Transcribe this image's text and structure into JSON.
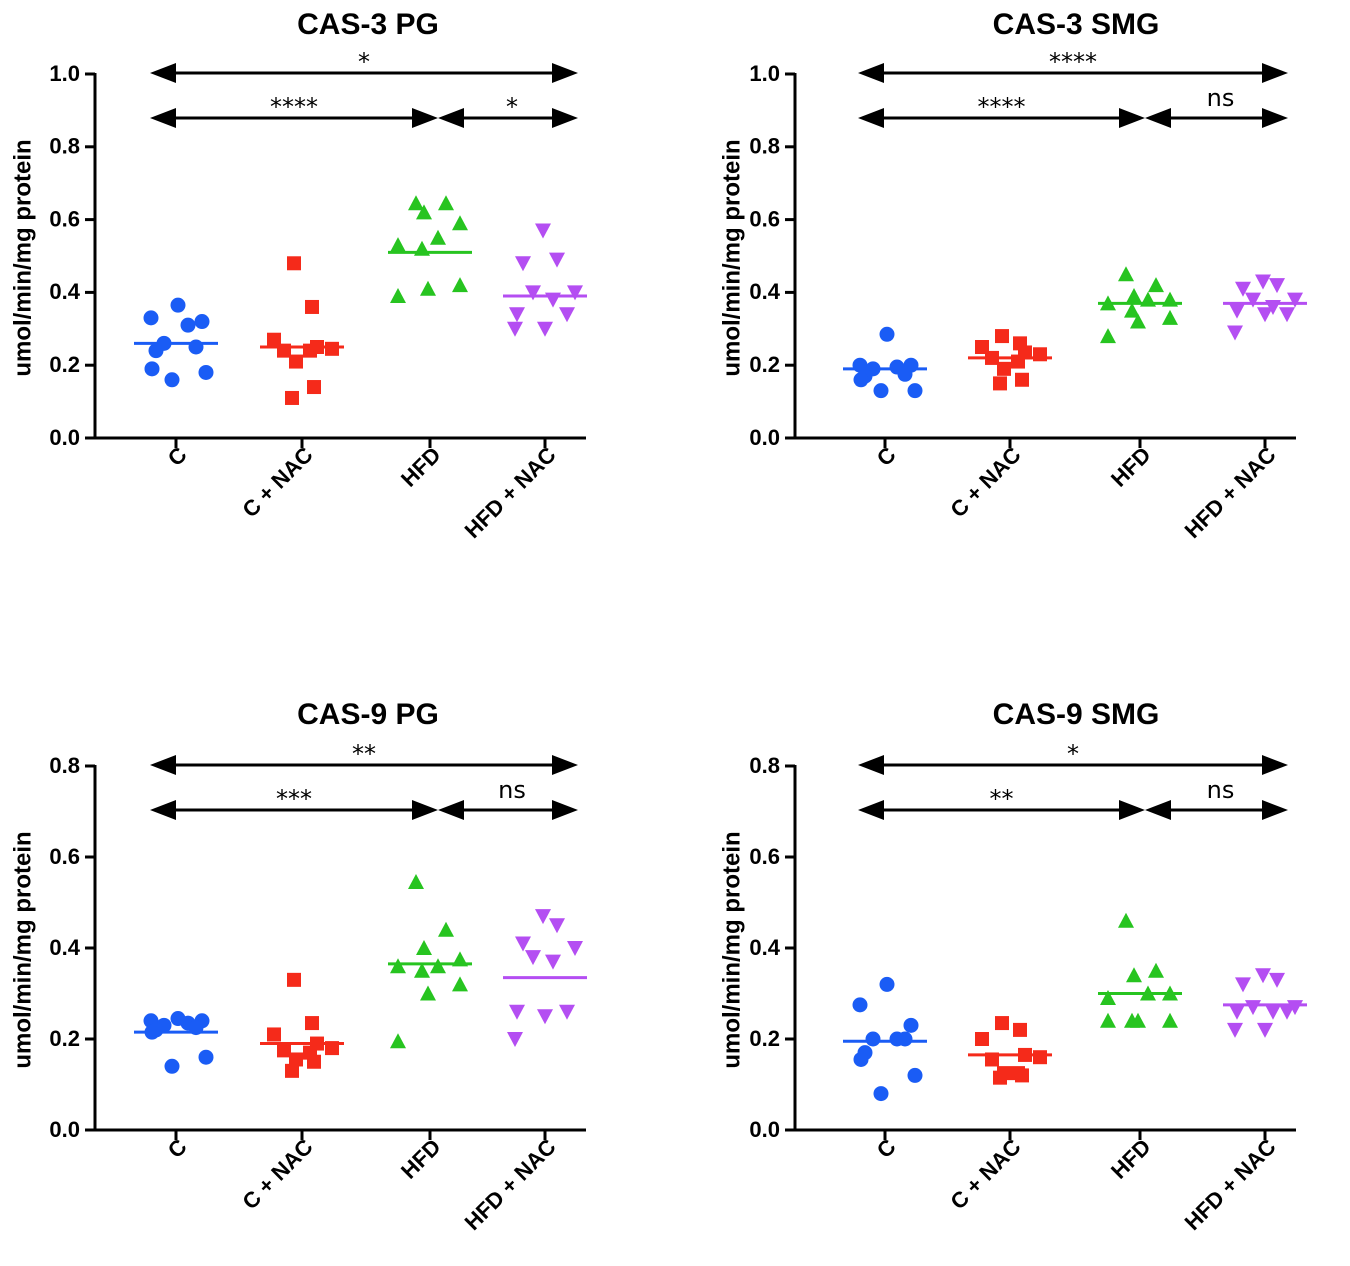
{
  "chart_data": [
    {
      "type": "scatter",
      "title": "CAS-3 PG",
      "ylabel": "umol/min/mg protein",
      "ylim": [
        0,
        1.0
      ],
      "yticks": [
        "0.0",
        "0.2",
        "0.4",
        "0.6",
        "0.8",
        "1.0"
      ],
      "categories": [
        "C",
        "C + NAC",
        "HFD",
        "HFD + NAC"
      ],
      "series": [
        {
          "name": "C",
          "shape": "circle",
          "color": "#1a5cf5",
          "mean": 0.26,
          "values": [
            0.365,
            0.33,
            0.32,
            0.31,
            0.26,
            0.25,
            0.24,
            0.19,
            0.18,
            0.16
          ]
        },
        {
          "name": "C + NAC",
          "shape": "square",
          "color": "#f52a1a",
          "mean": 0.25,
          "values": [
            0.48,
            0.36,
            0.27,
            0.25,
            0.245,
            0.24,
            0.24,
            0.21,
            0.14,
            0.11
          ]
        },
        {
          "name": "HFD",
          "shape": "triangle-up",
          "color": "#27c420",
          "mean": 0.51,
          "values": [
            0.645,
            0.645,
            0.62,
            0.59,
            0.55,
            0.53,
            0.52,
            0.42,
            0.41,
            0.39
          ]
        },
        {
          "name": "HFD + NAC",
          "shape": "triangle-down",
          "color": "#b44ef2",
          "mean": 0.39,
          "values": [
            0.57,
            0.49,
            0.48,
            0.4,
            0.4,
            0.38,
            0.34,
            0.34,
            0.3,
            0.3
          ]
        }
      ],
      "comparisons": [
        {
          "from": "C",
          "to": "HFD + NAC",
          "label": "*"
        },
        {
          "from": "C",
          "to": "HFD",
          "label": "****"
        },
        {
          "from": "HFD",
          "to": "HFD + NAC",
          "label": "*"
        }
      ]
    },
    {
      "type": "scatter",
      "title": "CAS-3 SMG",
      "ylabel": "umol/min/mg protein",
      "ylim": [
        0,
        1.0
      ],
      "yticks": [
        "0.0",
        "0.2",
        "0.4",
        "0.6",
        "0.8",
        "1.0"
      ],
      "categories": [
        "C",
        "C + NAC",
        "HFD",
        "HFD + NAC"
      ],
      "series": [
        {
          "name": "C",
          "shape": "circle",
          "color": "#1a5cf5",
          "mean": 0.19,
          "values": [
            0.285,
            0.2,
            0.2,
            0.195,
            0.19,
            0.175,
            0.17,
            0.16,
            0.13,
            0.13
          ]
        },
        {
          "name": "C + NAC",
          "shape": "square",
          "color": "#f52a1a",
          "mean": 0.22,
          "values": [
            0.28,
            0.26,
            0.25,
            0.235,
            0.23,
            0.22,
            0.21,
            0.19,
            0.16,
            0.15
          ]
        },
        {
          "name": "HFD",
          "shape": "triangle-up",
          "color": "#27c420",
          "mean": 0.37,
          "values": [
            0.45,
            0.42,
            0.39,
            0.38,
            0.38,
            0.37,
            0.35,
            0.33,
            0.32,
            0.28
          ]
        },
        {
          "name": "HFD + NAC",
          "shape": "triangle-down",
          "color": "#b44ef2",
          "mean": 0.37,
          "values": [
            0.43,
            0.42,
            0.41,
            0.38,
            0.38,
            0.36,
            0.35,
            0.34,
            0.34,
            0.29
          ]
        }
      ],
      "comparisons": [
        {
          "from": "C",
          "to": "HFD + NAC",
          "label": "****"
        },
        {
          "from": "C",
          "to": "HFD",
          "label": "****"
        },
        {
          "from": "HFD",
          "to": "HFD + NAC",
          "label": "ns"
        }
      ]
    },
    {
      "type": "scatter",
      "title": "CAS-9 PG",
      "ylabel": "umol/min/mg protein",
      "ylim": [
        0,
        0.8
      ],
      "yticks": [
        "0.0",
        "0.2",
        "0.4",
        "0.6",
        "0.8"
      ],
      "categories": [
        "C",
        "C + NAC",
        "HFD",
        "HFD + NAC"
      ],
      "series": [
        {
          "name": "C",
          "shape": "circle",
          "color": "#1a5cf5",
          "mean": 0.215,
          "values": [
            0.245,
            0.24,
            0.24,
            0.235,
            0.23,
            0.225,
            0.22,
            0.215,
            0.16,
            0.14
          ]
        },
        {
          "name": "C + NAC",
          "shape": "square",
          "color": "#f52a1a",
          "mean": 0.19,
          "values": [
            0.33,
            0.235,
            0.21,
            0.19,
            0.18,
            0.175,
            0.17,
            0.155,
            0.15,
            0.13
          ]
        },
        {
          "name": "HFD",
          "shape": "triangle-up",
          "color": "#27c420",
          "mean": 0.365,
          "values": [
            0.545,
            0.44,
            0.4,
            0.375,
            0.36,
            0.36,
            0.35,
            0.32,
            0.3,
            0.195
          ]
        },
        {
          "name": "HFD + NAC",
          "shape": "triangle-down",
          "color": "#b44ef2",
          "mean": 0.335,
          "values": [
            0.47,
            0.45,
            0.41,
            0.4,
            0.38,
            0.37,
            0.26,
            0.26,
            0.25,
            0.2
          ]
        }
      ],
      "comparisons": [
        {
          "from": "C",
          "to": "HFD + NAC",
          "label": "**"
        },
        {
          "from": "C",
          "to": "HFD",
          "label": "***"
        },
        {
          "from": "HFD",
          "to": "HFD + NAC",
          "label": "ns"
        }
      ]
    },
    {
      "type": "scatter",
      "title": "CAS-9 SMG",
      "ylabel": "umol/min/mg protein",
      "ylim": [
        0,
        0.8
      ],
      "yticks": [
        "0.0",
        "0.2",
        "0.4",
        "0.6",
        "0.8"
      ],
      "categories": [
        "C",
        "C + NAC",
        "HFD",
        "HFD + NAC"
      ],
      "series": [
        {
          "name": "C",
          "shape": "circle",
          "color": "#1a5cf5",
          "mean": 0.195,
          "values": [
            0.32,
            0.275,
            0.23,
            0.2,
            0.2,
            0.2,
            0.17,
            0.155,
            0.12,
            0.08
          ]
        },
        {
          "name": "C + NAC",
          "shape": "square",
          "color": "#f52a1a",
          "mean": 0.165,
          "values": [
            0.235,
            0.22,
            0.2,
            0.165,
            0.16,
            0.155,
            0.125,
            0.125,
            0.12,
            0.115
          ]
        },
        {
          "name": "HFD",
          "shape": "triangle-up",
          "color": "#27c420",
          "mean": 0.3,
          "values": [
            0.46,
            0.35,
            0.34,
            0.3,
            0.3,
            0.29,
            0.24,
            0.24,
            0.24,
            0.24
          ]
        },
        {
          "name": "HFD + NAC",
          "shape": "triangle-down",
          "color": "#b44ef2",
          "mean": 0.275,
          "values": [
            0.34,
            0.33,
            0.32,
            0.27,
            0.27,
            0.26,
            0.26,
            0.26,
            0.22,
            0.22
          ]
        }
      ],
      "comparisons": [
        {
          "from": "C",
          "to": "HFD + NAC",
          "label": "*"
        },
        {
          "from": "C",
          "to": "HFD",
          "label": "**"
        },
        {
          "from": "HFD",
          "to": "HFD + NAC",
          "label": "ns"
        }
      ]
    }
  ]
}
